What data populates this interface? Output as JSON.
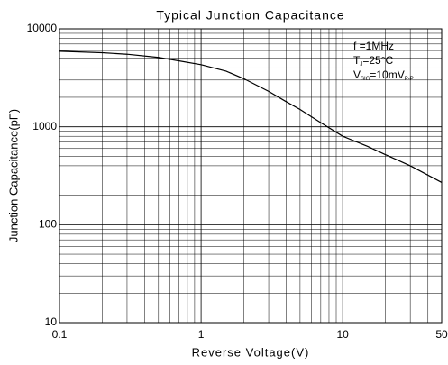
{
  "chart_data": {
    "type": "line",
    "title": "Typical Junction Capacitance",
    "x_label": "Reverse Voltage(V)",
    "y_label": "Junction Capacitance(pF)",
    "annotations": [
      [
        "f =1MHz"
      ],
      [
        "T",
        "J",
        "=25°C"
      ],
      [
        "V",
        "SIG",
        "=10mV",
        "P-P"
      ]
    ],
    "log_x": true,
    "log_y": true,
    "grid": true,
    "xlim": [
      0.1,
      50
    ],
    "ylim": [
      10,
      10000
    ],
    "xticks": [
      0.1,
      1,
      10,
      50
    ],
    "yticks": [
      10,
      100,
      1000,
      10000
    ],
    "xminorticks": [
      0.2,
      0.3,
      0.4,
      0.5,
      0.6,
      0.7,
      0.8,
      0.9,
      2,
      3,
      4,
      5,
      6,
      7,
      8,
      9,
      20,
      30,
      40
    ],
    "yminorticks": [
      20,
      30,
      40,
      50,
      60,
      70,
      80,
      90,
      200,
      300,
      400,
      500,
      600,
      700,
      800,
      900,
      2000,
      3000,
      4000,
      5000,
      6000,
      7000,
      8000,
      9000
    ],
    "series": [
      {
        "name": "Capacitance",
        "color": "#000000",
        "x": [
          0.1,
          0.2,
          0.3,
          0.5,
          0.7,
          1,
          1.5,
          2,
          3,
          4,
          5,
          7,
          10,
          15,
          20,
          30,
          50
        ],
        "values": [
          5900,
          5700,
          5500,
          5100,
          4700,
          4300,
          3700,
          3100,
          2300,
          1800,
          1500,
          1100,
          800,
          630,
          520,
          400,
          270
        ]
      }
    ]
  }
}
